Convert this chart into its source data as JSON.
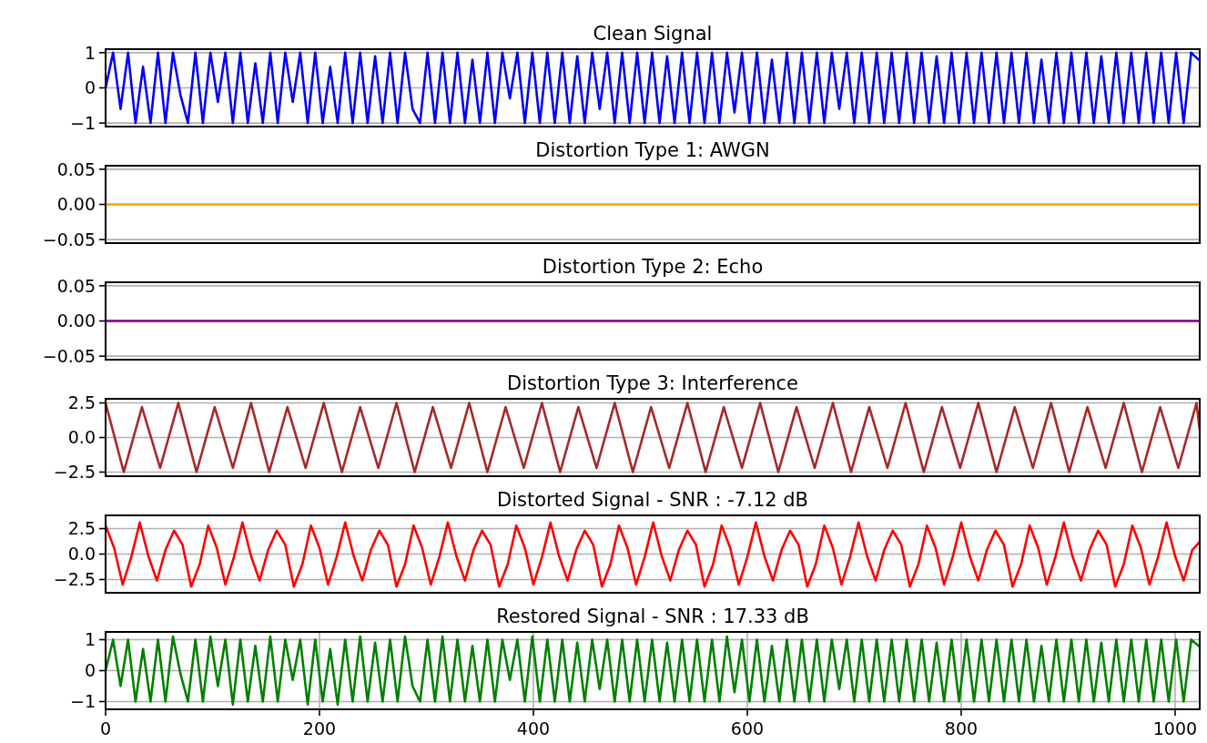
{
  "chart_data": [
    {
      "type": "line",
      "title": "Clean Signal",
      "xlim": [
        0,
        1023
      ],
      "ylim": [
        -1.1,
        1.1
      ],
      "yticks": [
        {
          "value": -1,
          "label": "−1"
        },
        0,
        1
      ],
      "grid": "y",
      "tick_labels": "y",
      "series": [
        {
          "color": "#0000ff",
          "x": [
            0,
            7,
            14,
            21,
            28,
            35,
            42,
            49,
            56,
            63,
            70,
            77,
            84,
            91,
            98,
            105,
            112,
            119,
            126,
            133,
            140,
            147,
            154,
            161,
            168,
            175,
            182,
            189,
            196,
            203,
            210,
            217,
            224,
            231,
            238,
            245,
            252,
            259,
            266,
            273,
            280,
            287,
            294,
            301,
            308,
            315,
            322,
            329,
            336,
            343,
            350,
            357,
            364,
            371,
            378,
            385,
            392,
            399,
            406,
            413,
            420,
            427,
            434,
            441,
            448,
            455,
            462,
            469,
            476,
            483,
            490,
            497,
            504,
            511,
            518,
            525,
            532,
            539,
            546,
            553,
            560,
            567,
            574,
            581,
            588,
            595,
            602,
            609,
            616,
            623,
            630,
            637,
            644,
            651,
            658,
            665,
            672,
            679,
            686,
            693,
            700,
            707,
            714,
            721,
            728,
            735,
            742,
            749,
            756,
            763,
            770,
            777,
            784,
            791,
            798,
            805,
            812,
            819,
            826,
            833,
            840,
            847,
            854,
            861,
            868,
            875,
            882,
            889,
            896,
            903,
            910,
            917,
            924,
            931,
            938,
            945,
            952,
            959,
            966,
            973,
            980,
            987,
            994,
            1001,
            1008,
            1015,
            1022
          ],
          "values": [
            0,
            1,
            -0.6,
            1,
            -1,
            0.6,
            -1,
            1,
            -1,
            1,
            -0.2,
            -1,
            1,
            -1,
            1,
            -0.4,
            1,
            -1,
            1,
            -1,
            0.7,
            -1,
            1,
            -1,
            1,
            -0.4,
            1,
            -1,
            1,
            -1,
            0.6,
            -1,
            1,
            -1,
            1,
            -1,
            0.9,
            -1,
            1,
            -1,
            1,
            -0.6,
            -1,
            1,
            -1,
            1,
            -1,
            1,
            -1,
            0.8,
            -1,
            1,
            -1,
            1,
            -0.3,
            1,
            -1,
            1,
            -1,
            1,
            -1,
            1,
            -1,
            0.9,
            -1,
            1,
            -0.6,
            1,
            -1,
            1,
            -1,
            1,
            -1,
            1,
            -1,
            0.9,
            -1,
            1,
            -1,
            1,
            -1,
            1,
            -1,
            1,
            -0.7,
            1,
            -1,
            1,
            -1,
            0.8,
            -1,
            1,
            -1,
            1,
            -1,
            1,
            -1,
            1,
            -0.6,
            1,
            -1,
            1,
            -1,
            1,
            -1,
            1,
            -1,
            1,
            -1,
            1,
            -1,
            0.9,
            -1,
            1,
            -1,
            1,
            -1,
            1,
            -1,
            1,
            -1,
            1,
            -1,
            1,
            -1,
            0.8,
            -1,
            1,
            -1,
            1,
            -1,
            1,
            -1,
            0.9,
            -1,
            1,
            -1,
            1,
            -1,
            1,
            -1,
            1,
            -1,
            1,
            -1,
            1,
            0.8
          ]
        }
      ]
    },
    {
      "type": "line",
      "title": "Distortion Type 1: AWGN",
      "xlim": [
        0,
        1023
      ],
      "ylim": [
        -0.055,
        0.055
      ],
      "yticks": [
        {
          "value": -0.05,
          "label": "−0.05"
        },
        {
          "value": 0,
          "label": "0.00"
        },
        0.05
      ],
      "grid": "y",
      "tick_labels": "y",
      "series": [
        {
          "color": "#ffa500",
          "x": [
            0,
            1023
          ],
          "values": [
            0,
            0
          ]
        }
      ]
    },
    {
      "type": "line",
      "title": "Distortion Type 2: Echo",
      "xlim": [
        0,
        1023
      ],
      "ylim": [
        -0.055,
        0.055
      ],
      "yticks": [
        {
          "value": -0.05,
          "label": "−0.05"
        },
        {
          "value": 0,
          "label": "0.00"
        },
        0.05
      ],
      "grid": "y",
      "tick_labels": "y",
      "series": [
        {
          "color": "#800080",
          "x": [
            0,
            1023
          ],
          "values": [
            0,
            0
          ]
        }
      ]
    },
    {
      "type": "line",
      "title": "Distortion Type 3: Interference",
      "xlim": [
        0,
        1023
      ],
      "ylim": [
        -2.8,
        2.8
      ],
      "yticks": [
        {
          "value": -2.5,
          "label": "−2.5"
        },
        {
          "value": 0,
          "label": "0.0"
        },
        2.5
      ],
      "grid": "y",
      "tick_labels": "y",
      "series": [
        {
          "color": "#a52a2a",
          "x": [
            0,
            17,
            34,
            51,
            68,
            85,
            102,
            119,
            136,
            153,
            170,
            187,
            204,
            221,
            238,
            255,
            272,
            289,
            306,
            323,
            340,
            357,
            374,
            391,
            408,
            425,
            442,
            459,
            476,
            493,
            510,
            527,
            544,
            561,
            578,
            595,
            612,
            629,
            646,
            663,
            680,
            697,
            714,
            731,
            748,
            765,
            782,
            799,
            816,
            833,
            850,
            867,
            884,
            901,
            918,
            935,
            952,
            969,
            986,
            1003,
            1020,
            1023
          ],
          "values": [
            2.5,
            -2.5,
            2.2,
            -2.2,
            2.5,
            -2.5,
            2.2,
            -2.2,
            2.5,
            -2.5,
            2.2,
            -2.2,
            2.5,
            -2.5,
            2.2,
            -2.2,
            2.5,
            -2.5,
            2.2,
            -2.2,
            2.5,
            -2.5,
            2.2,
            -2.2,
            2.5,
            -2.5,
            2.2,
            -2.2,
            2.5,
            -2.5,
            2.2,
            -2.2,
            2.5,
            -2.5,
            2.2,
            -2.2,
            2.5,
            -2.5,
            2.2,
            -2.2,
            2.5,
            -2.5,
            2.2,
            -2.2,
            2.5,
            -2.5,
            2.2,
            -2.2,
            2.5,
            -2.5,
            2.2,
            -2.2,
            2.5,
            -2.5,
            2.2,
            -2.2,
            2.5,
            -2.5,
            2.2,
            -2.2,
            2.5,
            0.5
          ]
        }
      ]
    },
    {
      "type": "line",
      "title": "Distorted Signal - SNR : -7.12 dB",
      "xlim": [
        0,
        1023
      ],
      "ylim": [
        -3.8,
        3.8
      ],
      "yticks": [
        {
          "value": -2.5,
          "label": "−2.5"
        },
        {
          "value": 0,
          "label": "0.0"
        },
        2.5
      ],
      "grid": "y",
      "tick_labels": "y",
      "series": [
        {
          "color": "#ff0000",
          "x": [
            0,
            8,
            16,
            24,
            32,
            40,
            48,
            56,
            64,
            72,
            80,
            88,
            96,
            104,
            112,
            120,
            128,
            136,
            144,
            152,
            160,
            168,
            176,
            184,
            192,
            200,
            208,
            216,
            224,
            232,
            240,
            248,
            256,
            264,
            272,
            280,
            288,
            296,
            304,
            312,
            320,
            328,
            336,
            344,
            352,
            360,
            368,
            376,
            384,
            392,
            400,
            408,
            416,
            424,
            432,
            440,
            448,
            456,
            464,
            472,
            480,
            488,
            496,
            504,
            512,
            520,
            528,
            536,
            544,
            552,
            560,
            568,
            576,
            584,
            592,
            600,
            608,
            616,
            624,
            632,
            640,
            648,
            656,
            664,
            672,
            680,
            688,
            696,
            704,
            712,
            720,
            728,
            736,
            744,
            752,
            760,
            768,
            776,
            784,
            792,
            800,
            808,
            816,
            824,
            832,
            840,
            848,
            856,
            864,
            872,
            880,
            888,
            896,
            904,
            912,
            920,
            928,
            936,
            944,
            952,
            960,
            968,
            976,
            984,
            992,
            1000,
            1008,
            1016,
            1023
          ],
          "values": [
            2.8,
            0.6,
            -3,
            -0.3,
            3.1,
            -0.2,
            -2.6,
            0.4,
            2.3,
            0.9,
            -3.2,
            -1,
            2.8,
            0.6,
            -3,
            -0.3,
            3.1,
            -0.2,
            -2.6,
            0.4,
            2.3,
            0.9,
            -3.2,
            -1,
            2.8,
            0.6,
            -3,
            -0.3,
            3.1,
            -0.2,
            -2.6,
            0.4,
            2.3,
            0.9,
            -3.2,
            -1,
            2.8,
            0.6,
            -3,
            -0.3,
            3.1,
            -0.2,
            -2.6,
            0.4,
            2.3,
            0.9,
            -3.2,
            -1,
            2.8,
            0.6,
            -3,
            -0.3,
            3.1,
            -0.2,
            -2.6,
            0.4,
            2.3,
            0.9,
            -3.2,
            -1,
            2.8,
            0.6,
            -3,
            -0.3,
            3.1,
            -0.2,
            -2.6,
            0.4,
            2.3,
            0.9,
            -3.2,
            -1,
            2.8,
            0.6,
            -3,
            -0.3,
            3.1,
            -0.2,
            -2.6,
            0.4,
            2.3,
            0.9,
            -3.2,
            -1,
            2.8,
            0.6,
            -3,
            -0.3,
            3.1,
            -0.2,
            -2.6,
            0.4,
            2.3,
            0.9,
            -3.2,
            -1,
            2.8,
            0.6,
            -3,
            -0.3,
            3.1,
            -0.2,
            -2.6,
            0.4,
            2.3,
            0.9,
            -3.2,
            -1,
            2.8,
            0.6,
            -3,
            -0.3,
            3.1,
            -0.2,
            -2.6,
            0.4,
            2.3,
            0.9,
            -3.2,
            -1,
            2.8,
            0.6,
            -3,
            -0.3,
            3.1,
            -0.2,
            -2.6,
            0.4,
            1.2
          ]
        }
      ]
    },
    {
      "type": "line",
      "title": "Restored Signal - SNR : 17.33 dB",
      "xlim": [
        0,
        1023
      ],
      "xticks": [
        0,
        200,
        400,
        600,
        800,
        1000
      ],
      "ylim": [
        -1.25,
        1.25
      ],
      "yticks": [
        {
          "value": -1,
          "label": "−1"
        },
        0,
        1
      ],
      "grid": true,
      "series": [
        {
          "color": "#008000",
          "x": [
            0,
            7,
            14,
            21,
            28,
            35,
            42,
            49,
            56,
            63,
            70,
            77,
            84,
            91,
            98,
            105,
            112,
            119,
            126,
            133,
            140,
            147,
            154,
            161,
            168,
            175,
            182,
            189,
            196,
            203,
            210,
            217,
            224,
            231,
            238,
            245,
            252,
            259,
            266,
            273,
            280,
            287,
            294,
            301,
            308,
            315,
            322,
            329,
            336,
            343,
            350,
            357,
            364,
            371,
            378,
            385,
            392,
            399,
            406,
            413,
            420,
            427,
            434,
            441,
            448,
            455,
            462,
            469,
            476,
            483,
            490,
            497,
            504,
            511,
            518,
            525,
            532,
            539,
            546,
            553,
            560,
            567,
            574,
            581,
            588,
            595,
            602,
            609,
            616,
            623,
            630,
            637,
            644,
            651,
            658,
            665,
            672,
            679,
            686,
            693,
            700,
            707,
            714,
            721,
            728,
            735,
            742,
            749,
            756,
            763,
            770,
            777,
            784,
            791,
            798,
            805,
            812,
            819,
            826,
            833,
            840,
            847,
            854,
            861,
            868,
            875,
            882,
            889,
            896,
            903,
            910,
            917,
            924,
            931,
            938,
            945,
            952,
            959,
            966,
            973,
            980,
            987,
            994,
            1001,
            1008,
            1015,
            1022
          ],
          "values": [
            0,
            1,
            -0.5,
            1,
            -1,
            0.7,
            -1,
            1,
            -1,
            1.1,
            -0.1,
            -1,
            1,
            -1,
            1.1,
            -0.5,
            1,
            -1.1,
            1,
            -1,
            0.8,
            -1,
            1.1,
            -1,
            1,
            -0.3,
            1,
            -1.1,
            1,
            -1,
            0.7,
            -1.1,
            1,
            -1,
            1.1,
            -1,
            0.9,
            -1,
            1,
            -1,
            1.1,
            -0.5,
            -1,
            1,
            -1,
            1.1,
            -1,
            1,
            -1,
            0.8,
            -1,
            1,
            -1,
            1,
            -0.3,
            1,
            -1,
            1.1,
            -1,
            1,
            -1,
            1,
            -1,
            0.9,
            -1,
            1,
            -0.6,
            1,
            -1,
            1,
            -1,
            1,
            -1,
            1,
            -1,
            0.9,
            -1,
            1,
            -1,
            1,
            -1,
            1,
            -1,
            1.1,
            -0.7,
            1,
            -1,
            1,
            -1,
            0.8,
            -1,
            1,
            -1,
            1,
            -1,
            1,
            -1,
            1,
            -0.6,
            1,
            -1,
            1,
            -1,
            1,
            -1,
            1,
            -1,
            1,
            -1,
            1,
            -1,
            0.9,
            -1,
            1,
            -1,
            1,
            -1,
            1,
            -1,
            1,
            -1,
            1,
            -1,
            1,
            -1,
            0.8,
            -1,
            1,
            -1,
            1,
            -1,
            1,
            -1,
            0.9,
            -1,
            1,
            -1,
            1,
            -1,
            1,
            -1,
            1,
            -1,
            1,
            -1,
            1,
            0.8
          ]
        }
      ]
    }
  ]
}
